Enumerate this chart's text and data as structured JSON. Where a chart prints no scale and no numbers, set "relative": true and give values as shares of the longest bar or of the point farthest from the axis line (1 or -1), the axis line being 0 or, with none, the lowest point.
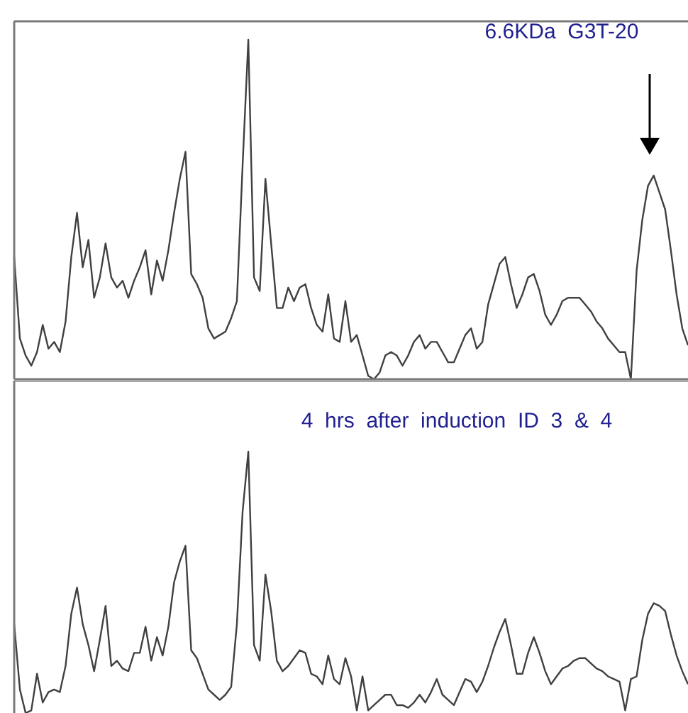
{
  "chart_data": [
    {
      "type": "line",
      "relative": true,
      "marker": "none",
      "legend": false,
      "color": "#404040",
      "annotations": [
        "6.6KDa  G3T-20"
      ],
      "categories": [
        null,
        null,
        null,
        null,
        null,
        null,
        null,
        null,
        null,
        null,
        null,
        null,
        null,
        null,
        null,
        null,
        null,
        null,
        null,
        null,
        null,
        null,
        null,
        null,
        null,
        null,
        null,
        null,
        null,
        null,
        null,
        null,
        null,
        null,
        null,
        null,
        null,
        null,
        null,
        null,
        null,
        null,
        null,
        null,
        null,
        null,
        null,
        null,
        null,
        null,
        null,
        null,
        null,
        null,
        null,
        null,
        null,
        null,
        null,
        null,
        null,
        null,
        null,
        null,
        null,
        null,
        null,
        null,
        null,
        null,
        null,
        null,
        null,
        null,
        null,
        null,
        null,
        null,
        null,
        null,
        null,
        null,
        null,
        null,
        null,
        null,
        null,
        null,
        null,
        null,
        null,
        null,
        null,
        null,
        null,
        null,
        null,
        null,
        null,
        null,
        null,
        null,
        null,
        null,
        null,
        null,
        null,
        null,
        null,
        null,
        null,
        null,
        null,
        null,
        null,
        null,
        null,
        null,
        null
      ],
      "values": [
        0.36,
        0.12,
        0.07,
        0.04,
        0.08,
        0.16,
        0.09,
        0.11,
        0.08,
        0.17,
        0.36,
        0.49,
        0.33,
        0.41,
        0.24,
        0.3,
        0.4,
        0.3,
        0.27,
        0.29,
        0.24,
        0.29,
        0.33,
        0.38,
        0.25,
        0.35,
        0.29,
        0.38,
        0.49,
        0.59,
        0.67,
        0.31,
        0.28,
        0.24,
        0.15,
        0.12,
        0.13,
        0.14,
        0.18,
        0.23,
        0.63,
        1.0,
        0.3,
        0.26,
        0.59,
        0.4,
        0.21,
        0.21,
        0.27,
        0.23,
        0.27,
        0.28,
        0.21,
        0.16,
        0.14,
        0.25,
        0.12,
        0.11,
        0.23,
        0.11,
        0.13,
        0.07,
        0.01,
        0.0,
        0.02,
        0.07,
        0.08,
        0.07,
        0.04,
        0.07,
        0.11,
        0.13,
        0.09,
        0.11,
        0.11,
        0.08,
        0.05,
        0.05,
        0.09,
        0.13,
        0.15,
        0.09,
        0.11,
        0.22,
        0.28,
        0.34,
        0.36,
        0.28,
        0.21,
        0.25,
        0.3,
        0.31,
        0.26,
        0.19,
        0.16,
        0.19,
        0.23,
        0.24,
        0.24,
        0.24,
        0.22,
        0.2,
        0.17,
        0.15,
        0.12,
        0.1,
        0.08,
        0.08,
        0.0,
        0.32,
        0.47,
        0.57,
        0.6,
        0.55,
        0.5,
        0.38,
        0.25,
        0.15,
        0.1
      ]
    },
    {
      "type": "line",
      "relative": true,
      "marker": "none",
      "legend": false,
      "color": "#404040",
      "annotations": [
        "4  hrs  after  induction  ID  3  &  4"
      ],
      "categories": [
        null,
        null,
        null,
        null,
        null,
        null,
        null,
        null,
        null,
        null,
        null,
        null,
        null,
        null,
        null,
        null,
        null,
        null,
        null,
        null,
        null,
        null,
        null,
        null,
        null,
        null,
        null,
        null,
        null,
        null,
        null,
        null,
        null,
        null,
        null,
        null,
        null,
        null,
        null,
        null,
        null,
        null,
        null,
        null,
        null,
        null,
        null,
        null,
        null,
        null,
        null,
        null,
        null,
        null,
        null,
        null,
        null,
        null,
        null,
        null,
        null,
        null,
        null,
        null,
        null,
        null,
        null,
        null,
        null,
        null,
        null,
        null,
        null,
        null,
        null,
        null,
        null,
        null,
        null,
        null,
        null,
        null,
        null,
        null,
        null,
        null,
        null,
        null,
        null,
        null,
        null,
        null,
        null,
        null,
        null,
        null,
        null,
        null,
        null,
        null,
        null,
        null,
        null,
        null,
        null,
        null,
        null,
        null,
        null,
        null,
        null,
        null,
        null,
        null,
        null,
        null,
        null,
        null,
        null
      ],
      "values": [
        0.34,
        0.09,
        0.0,
        0.01,
        0.15,
        0.04,
        0.08,
        0.09,
        0.08,
        0.18,
        0.38,
        0.48,
        0.34,
        0.26,
        0.16,
        0.28,
        0.41,
        0.18,
        0.2,
        0.17,
        0.16,
        0.23,
        0.23,
        0.33,
        0.2,
        0.29,
        0.22,
        0.33,
        0.5,
        0.58,
        0.64,
        0.24,
        0.21,
        0.15,
        0.09,
        0.07,
        0.05,
        0.07,
        0.1,
        0.34,
        0.77,
        1.0,
        0.26,
        0.2,
        0.53,
        0.39,
        0.2,
        0.16,
        0.18,
        0.21,
        0.24,
        0.23,
        0.15,
        0.14,
        0.11,
        0.22,
        0.13,
        0.11,
        0.21,
        0.14,
        0.01,
        0.14,
        0.01,
        0.03,
        0.05,
        0.07,
        0.07,
        0.03,
        0.03,
        0.02,
        0.04,
        0.07,
        0.04,
        0.08,
        0.13,
        0.07,
        0.05,
        0.03,
        0.08,
        0.13,
        0.12,
        0.08,
        0.12,
        0.18,
        0.25,
        0.31,
        0.36,
        0.26,
        0.15,
        0.15,
        0.23,
        0.29,
        0.23,
        0.16,
        0.11,
        0.14,
        0.17,
        0.18,
        0.2,
        0.21,
        0.21,
        0.19,
        0.17,
        0.16,
        0.14,
        0.13,
        0.12,
        0.01,
        0.13,
        0.14,
        0.28,
        0.38,
        0.42,
        0.41,
        0.39,
        0.3,
        0.22,
        0.16,
        0.11
      ]
    }
  ]
}
